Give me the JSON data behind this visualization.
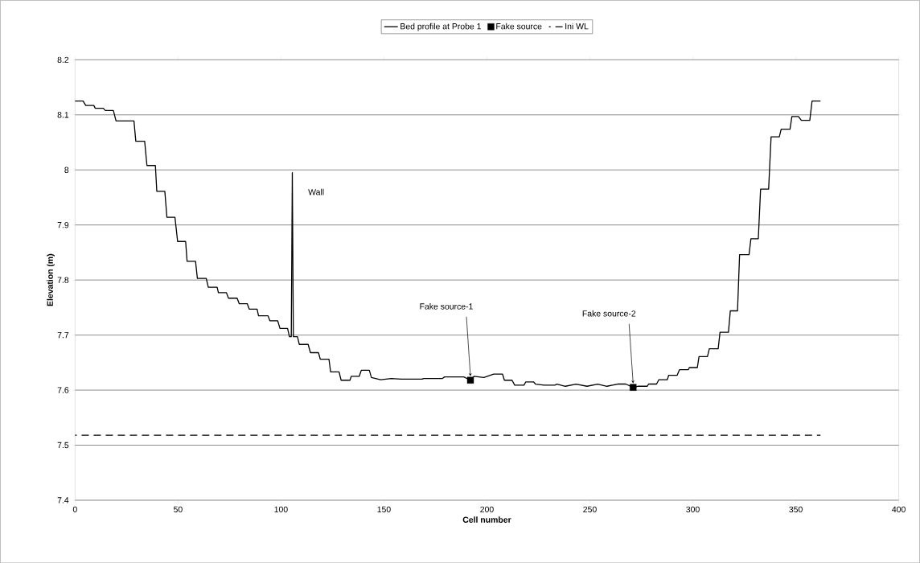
{
  "chart_data": {
    "type": "line",
    "xlabel": "Cell number",
    "ylabel": "Elevation (m)",
    "xlim": [
      0,
      400
    ],
    "xticks": [
      0,
      50,
      100,
      150,
      200,
      250,
      300,
      350,
      400
    ],
    "ylim": [
      7.4,
      8.2
    ],
    "yticks": [
      7.4,
      7.5,
      7.6,
      7.7,
      7.8,
      7.9,
      8,
      8.1,
      8.2
    ],
    "grid": "y",
    "legend": "top",
    "series": [
      {
        "name": "Bed profile at Probe 1",
        "color": "#000000",
        "line_style": "solid",
        "marker": "none",
        "x": [
          0,
          3.9,
          5.2,
          9.1,
          9.8,
          13.7,
          14.7,
          18.6,
          19.9,
          28.6,
          29.5,
          33.8,
          34.9,
          39,
          39.7,
          43.6,
          44.6,
          48.5,
          49.8,
          53.7,
          54.4,
          58.5,
          59.4,
          63.7,
          64.7,
          69,
          69.6,
          73.5,
          74.5,
          78.7,
          79.7,
          83.6,
          84.6,
          88.4,
          89.1,
          93.7,
          94.6,
          98.4,
          99.5,
          103.2,
          104.1,
          105,
          105.5,
          106,
          108,
          108.9,
          113.2,
          114.3,
          118.2,
          119.1,
          123.3,
          124.1,
          128.2,
          129.2,
          133.5,
          134.1,
          138,
          139,
          142.9,
          143.9,
          148.4,
          153.6,
          158.2,
          168.6,
          169.2,
          178.3,
          179.4,
          188.8,
          192,
          193.7,
          198.5,
          203.3,
          207.6,
          208.5,
          212.2,
          213.5,
          218,
          218.9,
          222.6,
          223.6,
          227.8,
          233,
          234,
          238.1,
          243.3,
          248.6,
          253.8,
          258.3,
          263.5,
          267.4,
          271,
          273.3,
          277.9,
          278.5,
          282.4,
          283.5,
          287.6,
          288.3,
          292.4,
          293.5,
          297.8,
          298.3,
          302.2,
          303,
          307.1,
          308,
          312.3,
          313.2,
          317.3,
          318.2,
          321.7,
          322.7,
          327.3,
          328.2,
          331.8,
          332.9,
          336.8,
          338,
          342,
          342.9,
          347.2,
          348.1,
          351.3,
          352.7,
          356.8,
          357.9,
          362
        ],
        "values": [
          8.125,
          8.125,
          8.117,
          8.117,
          8.112,
          8.112,
          8.108,
          8.108,
          8.089,
          8.089,
          8.052,
          8.052,
          8.008,
          8.008,
          7.961,
          7.961,
          7.914,
          7.914,
          7.87,
          7.87,
          7.834,
          7.834,
          7.803,
          7.803,
          7.787,
          7.787,
          7.777,
          7.777,
          7.767,
          7.767,
          7.757,
          7.757,
          7.747,
          7.747,
          7.735,
          7.735,
          7.726,
          7.726,
          7.712,
          7.712,
          7.697,
          7.697,
          7.995,
          7.697,
          7.697,
          7.683,
          7.683,
          7.668,
          7.668,
          7.656,
          7.656,
          7.633,
          7.633,
          7.618,
          7.618,
          7.625,
          7.625,
          7.636,
          7.636,
          7.623,
          7.619,
          7.621,
          7.62,
          7.62,
          7.621,
          7.621,
          7.624,
          7.624,
          7.618,
          7.625,
          7.623,
          7.629,
          7.629,
          7.618,
          7.618,
          7.609,
          7.609,
          7.615,
          7.615,
          7.611,
          7.609,
          7.609,
          7.611,
          7.607,
          7.611,
          7.607,
          7.611,
          7.607,
          7.611,
          7.611,
          7.605,
          7.607,
          7.607,
          7.611,
          7.611,
          7.619,
          7.619,
          7.627,
          7.627,
          7.637,
          7.637,
          7.641,
          7.641,
          7.661,
          7.661,
          7.675,
          7.675,
          7.705,
          7.705,
          7.744,
          7.744,
          7.846,
          7.846,
          7.875,
          7.875,
          7.965,
          7.965,
          8.06,
          8.06,
          8.074,
          8.074,
          8.097,
          8.097,
          8.09,
          8.09,
          8.125,
          8.125
        ]
      },
      {
        "name": "Fake source",
        "type": "scatter",
        "color": "#000000",
        "marker": "square",
        "x": [
          192,
          271
        ],
        "values": [
          7.618,
          7.605
        ]
      },
      {
        "name": "Ini WL",
        "color": "#000000",
        "line_style": "dashed",
        "marker": "none",
        "x": [
          0,
          362
        ],
        "values": [
          7.518,
          7.518
        ]
      }
    ],
    "annotations": [
      {
        "text": "Wall",
        "x": 105.5,
        "y": 7.995
      },
      {
        "text": "Fake source-1",
        "x": 192,
        "y": 7.618
      },
      {
        "text": "Fake source-2",
        "x": 271,
        "y": 7.605
      }
    ]
  }
}
